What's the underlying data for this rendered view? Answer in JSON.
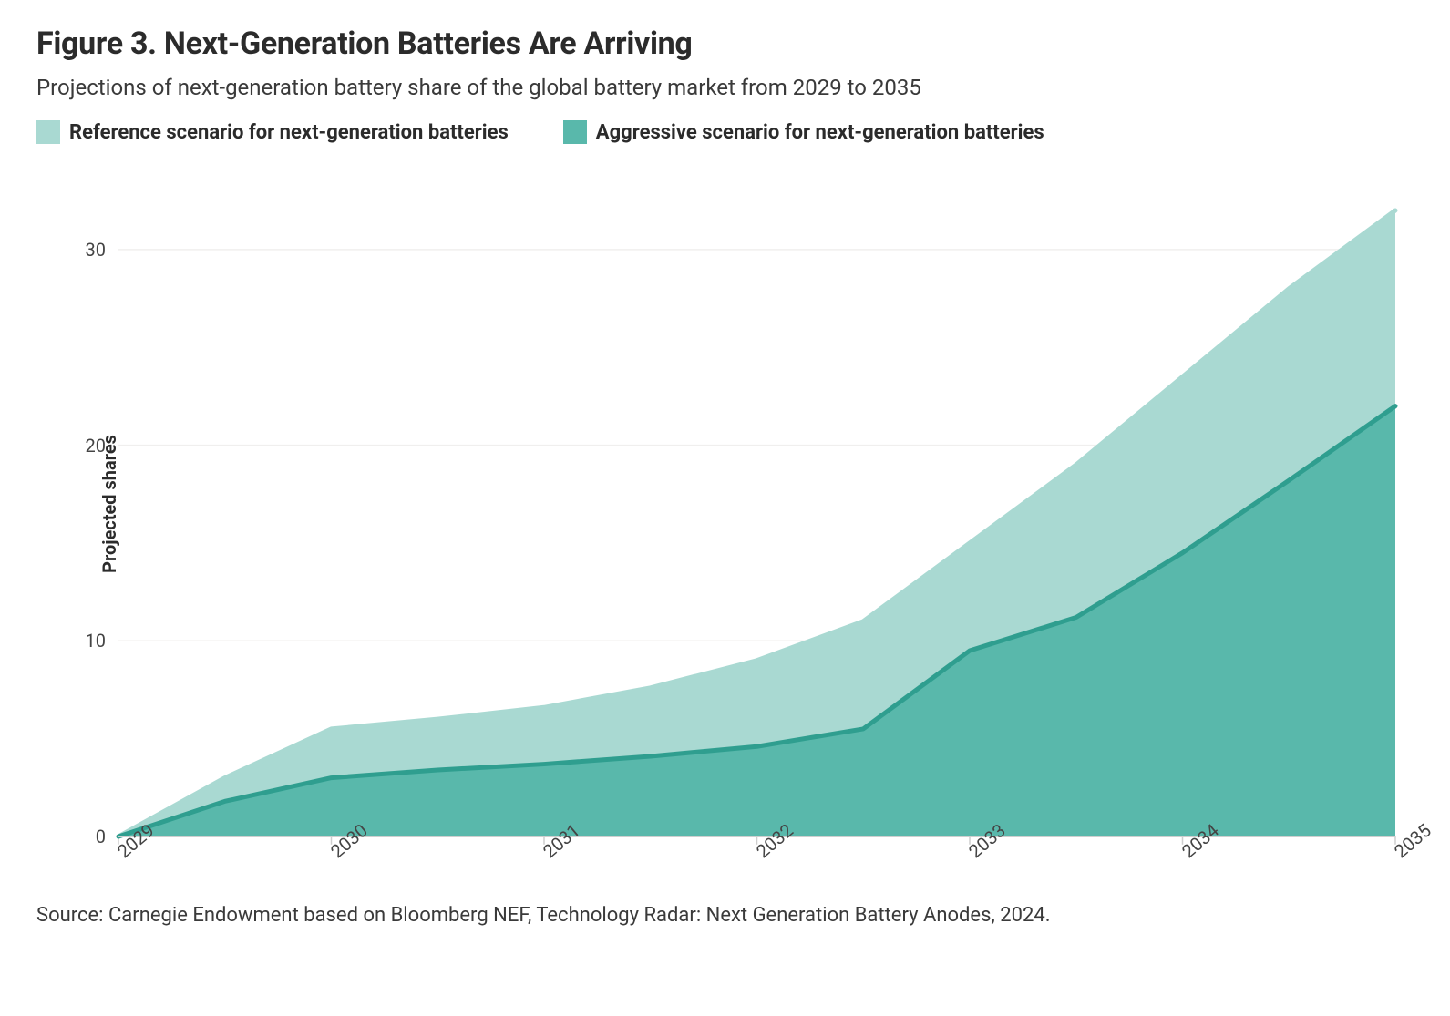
{
  "title": "Figure 3. Next-Generation Batteries Are Arriving",
  "subtitle": "Projections of next-generation battery share of the global battery market from 2029 to 2035",
  "source": "Source: Carnegie Endowment based on Bloomberg NEF, Technology Radar: Next Generation Battery Anodes, 2024.",
  "legend": {
    "series1_label": "Reference scenario for next-generation batteries",
    "series2_label": "Aggressive scenario for next-generation batteries"
  },
  "chart": {
    "type": "area",
    "ylabel": "Projected shares",
    "ylim": [
      0,
      34
    ],
    "yticks": [
      0,
      10,
      20,
      30
    ],
    "xlim": [
      2029,
      2035
    ],
    "xticks": [
      2029,
      2030,
      2031,
      2032,
      2033,
      2034,
      2035
    ],
    "xtick_labels": [
      "2029",
      "2030",
      "2031",
      "2032",
      "2033",
      "2034",
      "2035"
    ],
    "background_color": "#ffffff",
    "grid_color": "#f0efee",
    "axis_color": "#cfcfcf",
    "title_fontsize": 34,
    "subtitle_fontsize": 24,
    "label_fontsize": 20,
    "tick_fontsize": 20,
    "line_width": 5,
    "series": [
      {
        "name": "reference",
        "label": "Reference scenario for next-generation batteries",
        "fill_color": "#a9d9d2",
        "line_color": "#a9d9d2",
        "fill_opacity": 1.0,
        "x": [
          2029,
          2029.5,
          2030,
          2030.5,
          2031,
          2031.5,
          2032,
          2032.5,
          2033,
          2033.5,
          2034,
          2034.5,
          2035
        ],
        "y": [
          0.0,
          3.0,
          5.5,
          6.0,
          6.6,
          7.6,
          9.0,
          11.0,
          15.0,
          19.0,
          23.5,
          28.0,
          32.0
        ]
      },
      {
        "name": "aggressive",
        "label": "Aggressive scenario for next-generation batteries",
        "fill_color": "#59b8ab",
        "line_color": "#2f9e8f",
        "fill_opacity": 1.0,
        "x": [
          2029,
          2029.5,
          2030,
          2030.5,
          2031,
          2031.5,
          2032,
          2032.5,
          2033,
          2033.5,
          2034,
          2034.5,
          2035
        ],
        "y": [
          0.0,
          1.8,
          3.0,
          3.4,
          3.7,
          4.1,
          4.6,
          5.5,
          9.5,
          11.2,
          14.5,
          18.2,
          22.0
        ]
      }
    ]
  }
}
